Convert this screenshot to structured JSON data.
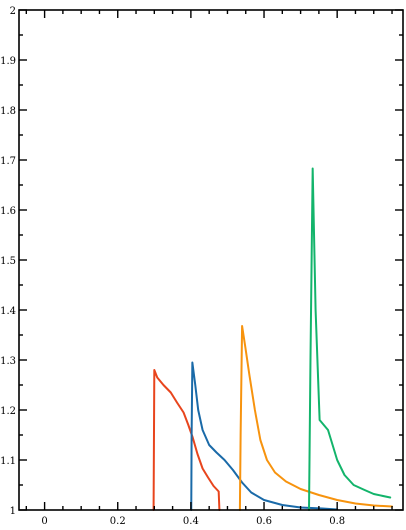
{
  "chart_data": {
    "type": "line",
    "title": "",
    "xlabel": "",
    "ylabel": "",
    "xlim": [
      -0.07,
      0.98
    ],
    "ylim": [
      1.0,
      2.0
    ],
    "grid": false,
    "x_major_ticks": [
      0,
      0.2,
      0.4,
      0.6,
      0.8
    ],
    "x_tick_labels": [
      "0",
      "0.2",
      "0.4",
      "0.6",
      "0.8"
    ],
    "y_major_ticks": [
      1,
      1.1,
      1.2,
      1.3,
      1.4,
      1.5,
      1.6,
      1.7,
      1.8,
      1.9,
      2
    ],
    "y_tick_labels": [
      "1",
      "1.1",
      "1.2",
      "1.3",
      "1.4",
      "1.5",
      "1.6",
      "1.7",
      "1.8",
      "1.9",
      "2"
    ],
    "series": [
      {
        "color": "#e8451d",
        "points": [
          [
            0.298,
            1.0
          ],
          [
            0.299,
            1.14
          ],
          [
            0.3,
            1.28
          ],
          [
            0.308,
            1.265
          ],
          [
            0.325,
            1.25
          ],
          [
            0.345,
            1.235
          ],
          [
            0.362,
            1.215
          ],
          [
            0.38,
            1.195
          ],
          [
            0.393,
            1.17
          ],
          [
            0.405,
            1.145
          ],
          [
            0.418,
            1.112
          ],
          [
            0.432,
            1.083
          ],
          [
            0.447,
            1.065
          ],
          [
            0.462,
            1.048
          ],
          [
            0.476,
            1.037
          ],
          [
            0.478,
            1.0
          ]
        ]
      },
      {
        "color": "#1a6aa8",
        "points": [
          [
            0.401,
            1.0
          ],
          [
            0.402,
            1.15
          ],
          [
            0.404,
            1.295
          ],
          [
            0.412,
            1.25
          ],
          [
            0.42,
            1.2
          ],
          [
            0.432,
            1.16
          ],
          [
            0.45,
            1.13
          ],
          [
            0.47,
            1.115
          ],
          [
            0.492,
            1.1
          ],
          [
            0.515,
            1.08
          ],
          [
            0.54,
            1.055
          ],
          [
            0.565,
            1.035
          ],
          [
            0.6,
            1.02
          ],
          [
            0.65,
            1.01
          ],
          [
            0.7,
            1.005
          ],
          [
            0.76,
            1.003
          ],
          [
            0.8,
            1.001
          ]
        ]
      },
      {
        "color": "#f7930e",
        "points": [
          [
            0.534,
            1.0
          ],
          [
            0.536,
            1.15
          ],
          [
            0.54,
            1.368
          ],
          [
            0.548,
            1.33
          ],
          [
            0.56,
            1.27
          ],
          [
            0.575,
            1.2
          ],
          [
            0.59,
            1.14
          ],
          [
            0.608,
            1.1
          ],
          [
            0.63,
            1.075
          ],
          [
            0.66,
            1.057
          ],
          [
            0.7,
            1.042
          ],
          [
            0.75,
            1.03
          ],
          [
            0.8,
            1.02
          ],
          [
            0.85,
            1.013
          ],
          [
            0.9,
            1.009
          ],
          [
            0.95,
            1.007
          ]
        ]
      },
      {
        "color": "#13b46b",
        "points": [
          [
            0.723,
            1.0
          ],
          [
            0.727,
            1.3
          ],
          [
            0.733,
            1.683
          ],
          [
            0.741,
            1.4
          ],
          [
            0.752,
            1.18
          ],
          [
            0.775,
            1.16
          ],
          [
            0.8,
            1.1
          ],
          [
            0.82,
            1.07
          ],
          [
            0.845,
            1.05
          ],
          [
            0.875,
            1.04
          ],
          [
            0.9,
            1.032
          ],
          [
            0.945,
            1.025
          ]
        ]
      }
    ]
  }
}
